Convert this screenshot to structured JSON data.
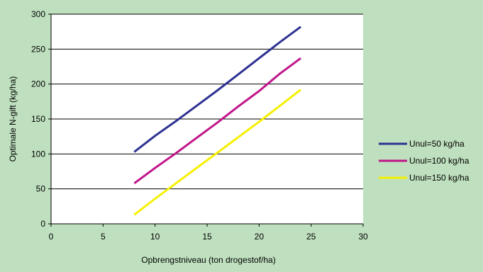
{
  "chart_data": {
    "type": "line",
    "xlabel": "Opbrengstniveau (ton drogestof/ha)",
    "ylabel": "Optimale N-gift (kg/ha)",
    "xlim": [
      0,
      30
    ],
    "ylim": [
      0,
      300
    ],
    "xticks": [
      0,
      5,
      10,
      15,
      20,
      25,
      30
    ],
    "yticks": [
      0,
      50,
      100,
      150,
      200,
      250,
      300
    ],
    "grid": "horizontal",
    "legend_position": "right",
    "series": [
      {
        "name": "Unul=50 kg/ha",
        "color": "#2e3192",
        "x": [
          8,
          10,
          12,
          14,
          16,
          18,
          20,
          22,
          24
        ],
        "y": [
          103,
          126,
          147,
          169,
          191,
          214,
          237,
          260,
          282
        ]
      },
      {
        "name": "Unul=100 kg/ha",
        "color": "#c0168a",
        "x": [
          8,
          10,
          12,
          14,
          16,
          18,
          20,
          22,
          24
        ],
        "y": [
          58,
          80,
          101,
          123,
          145,
          168,
          190,
          215,
          237
        ]
      },
      {
        "name": "Unul=150 kg/ha",
        "color": "#f5f000",
        "x": [
          8,
          10,
          12,
          14,
          16,
          18,
          20,
          22,
          24
        ],
        "y": [
          13,
          36,
          58,
          80,
          102,
          124,
          146,
          169,
          192
        ]
      }
    ]
  }
}
